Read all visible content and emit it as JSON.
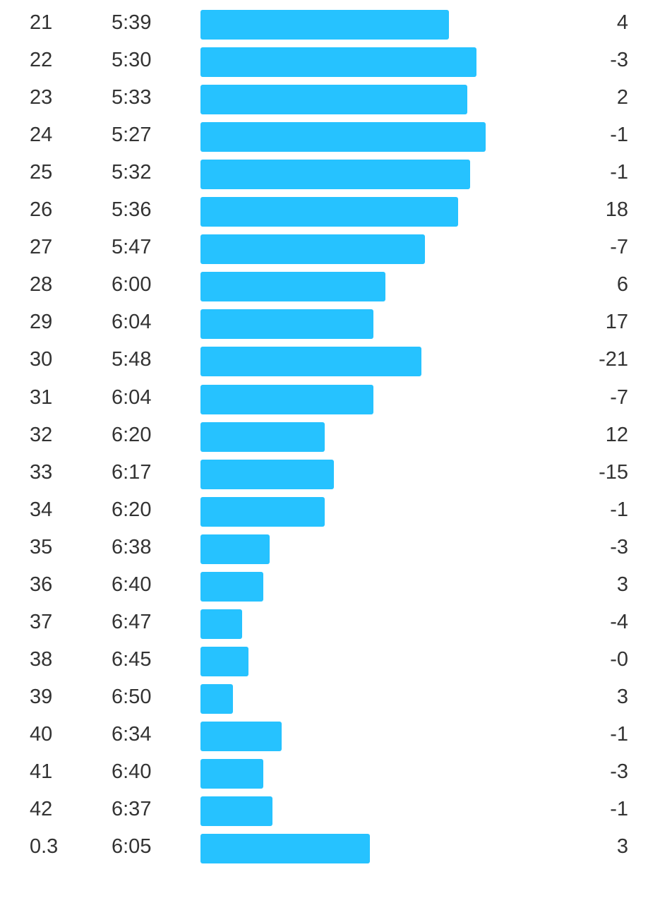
{
  "colors": {
    "bar": "#26c2ff",
    "text": "#333333"
  },
  "chart_data": {
    "type": "bar",
    "orientation": "horizontal",
    "categories": [
      "21",
      "22",
      "23",
      "24",
      "25",
      "26",
      "27",
      "28",
      "29",
      "30",
      "31",
      "32",
      "33",
      "34",
      "35",
      "36",
      "37",
      "38",
      "39",
      "40",
      "41",
      "42",
      "0.3"
    ],
    "series": [
      {
        "values": [
          "5:39",
          "5:30",
          "5:33",
          "5:27",
          "5:32",
          "5:36",
          "5:47",
          "6:00",
          "6:04",
          "5:48",
          "6:04",
          "6:20",
          "6:17",
          "6:20",
          "6:38",
          "6:40",
          "6:47",
          "6:45",
          "6:50",
          "6:34",
          "6:40",
          "6:37",
          "6:05"
        ]
      }
    ],
    "elevation": [
      "4",
      "-3",
      "2",
      "-1",
      "-1",
      "18",
      "-7",
      "6",
      "17",
      "-21",
      "-7",
      "12",
      "-15",
      "-1",
      "-3",
      "3",
      "-4",
      "-0",
      "3",
      "-1",
      "-3",
      "-1",
      "3"
    ]
  }
}
